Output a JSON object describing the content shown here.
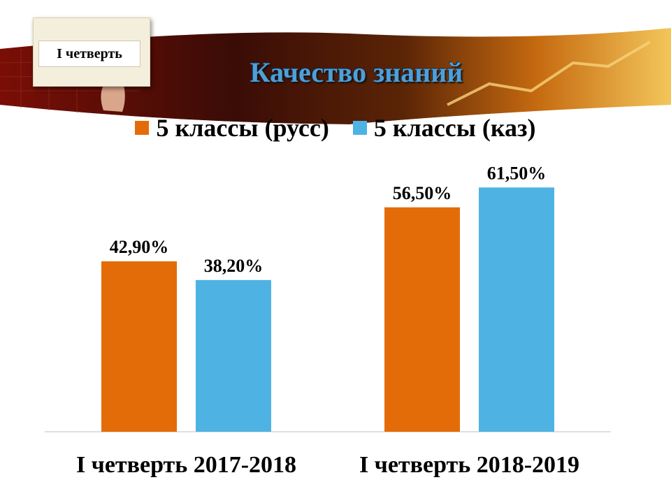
{
  "badge": {
    "label": "I четверть"
  },
  "chart_data": {
    "type": "bar",
    "title": "Качество знаний",
    "categories": [
      "I четверть 2017-2018",
      "I четверть 2018-2019"
    ],
    "series": [
      {
        "name": "5 классы (русс)",
        "color": "#e36c09",
        "values": [
          42.9,
          56.5
        ],
        "labels": [
          "42,90%",
          "56,50%"
        ]
      },
      {
        "name": "5 классы (каз)",
        "color": "#4eb3e3",
        "values": [
          38.2,
          61.5
        ],
        "labels": [
          "38,20%",
          "61,50%"
        ]
      }
    ],
    "ylim": [
      0,
      70
    ],
    "grid": false,
    "legend_position": "top"
  }
}
